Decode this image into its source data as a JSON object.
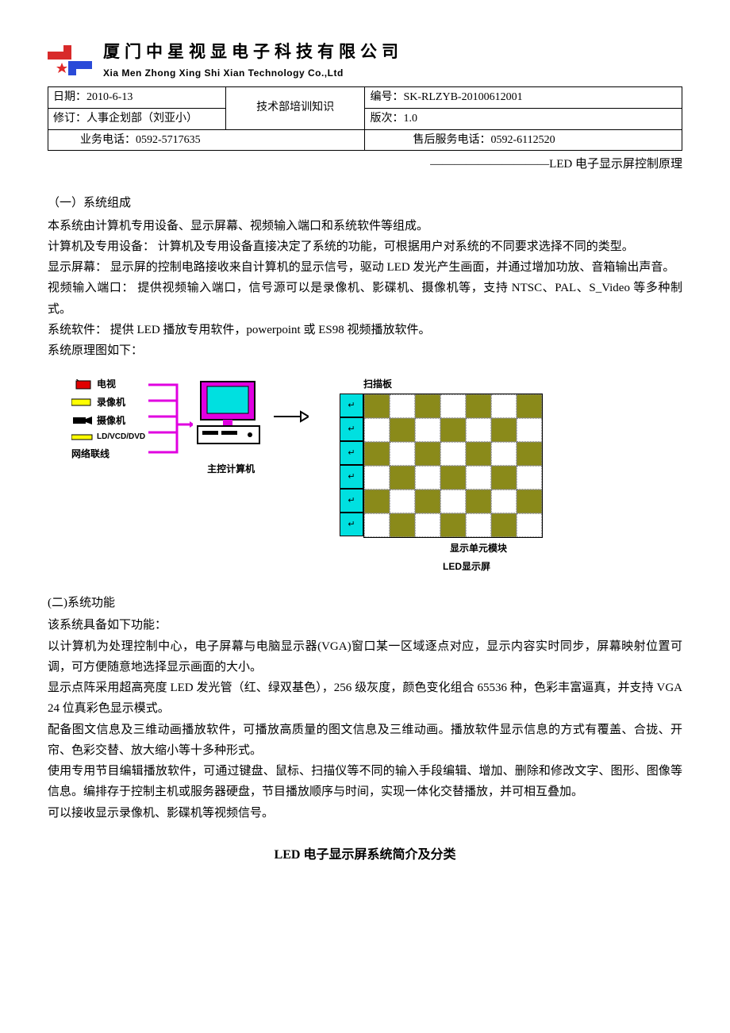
{
  "company": {
    "name_cn": "厦门中星视显电子科技有限公司",
    "name_en": "Xia Men Zhong Xing Shi Xian Technology Co.,Ltd",
    "logo_colors": {
      "red": "#d82a2a",
      "blue": "#2a4ad8",
      "star": "#e02a2a"
    }
  },
  "info": {
    "date_label": "日期：",
    "date_value": "2010-6-13",
    "center_title": "技术部培训知识",
    "doc_no_label": "编号：",
    "doc_no_value": "SK-RLZYB-20100612001",
    "rev_label": "修订：",
    "rev_value": "人事企划部（刘亚小）",
    "ver_label": "版次：",
    "ver_value": "1.0",
    "biz_phone_label": "业务电话：",
    "biz_phone_value": "0592-5717635",
    "svc_phone_label": "售后服务电话：",
    "svc_phone_value": "0592-6112520"
  },
  "title_line": "——————————LED 电子显示屏控制原理",
  "sec1": {
    "heading": "（一）系统组成",
    "p1": "本系统由计算机专用设备、显示屏幕、视频输入端口和系统软件等组成。",
    "p2": "计算机及专用设备： 计算机及专用设备直接决定了系统的功能，可根据用户对系统的不同要求选择不同的类型。",
    "p3": "显示屏幕： 显示屏的控制电路接收来自计算机的显示信号，驱动 LED 发光产生画面，并通过增加功放、音箱输出声音。",
    "p4": "视频输入端口： 提供视频输入端口，信号源可以是录像机、影碟机、摄像机等，支持 NTSC、PAL、S_Video 等多种制式。",
    "p5": "系统软件： 提供 LED 播放专用软件，powerpoint 或 ES98 视频播放软件。",
    "p6": "系统原理图如下："
  },
  "diagram": {
    "sources": {
      "tv": "电视",
      "vcr": "录像机",
      "cam": "摄像机",
      "disc": "LD/VCD/DVD",
      "net": "网络联线"
    },
    "pc_label": "主控计算机",
    "scan_label": "扫描板",
    "unit_label": "显示单元模块",
    "screen_label": "LED显示屏",
    "colors": {
      "cyan": "#00e0e0",
      "olive": "#8a8a1a",
      "magenta": "#e000e0",
      "yellow": "#ffff00",
      "red": "#e00000",
      "white": "#ffffff",
      "black": "#000000"
    },
    "scan_arrow": "↵"
  },
  "sec2": {
    "heading": "(二)系统功能",
    "p1": "该系统具备如下功能：",
    "p2": "以计算机为处理控制中心，电子屏幕与电脑显示器(VGA)窗口某一区域逐点对应，显示内容实时同步，屏幕映射位置可调，可方便随意地选择显示画面的大小。",
    "p3": "显示点阵采用超高亮度 LED 发光管（红、绿双基色），256 级灰度，颜色变化组合 65536 种，色彩丰富逼真，并支持 VGA 24 位真彩色显示模式。",
    "p4": "配备图文信息及三维动画播放软件，可播放高质量的图文信息及三维动画。播放软件显示信息的方式有覆盖、合拢、开帘、色彩交替、放大缩小等十多种形式。",
    "p5": "使用专用节目编辑播放软件，可通过键盘、鼠标、扫描仪等不同的输入手段编辑、增加、删除和修改文字、图形、图像等信息。编排存于控制主机或服务器硬盘，节目播放顺序与时间，实现一体化交替播放，并可相互叠加。",
    "p6": "可以接收显示录像机、影碟机等视频信号。"
  },
  "bottom_title": "LED 电子显示屏系统简介及分类"
}
